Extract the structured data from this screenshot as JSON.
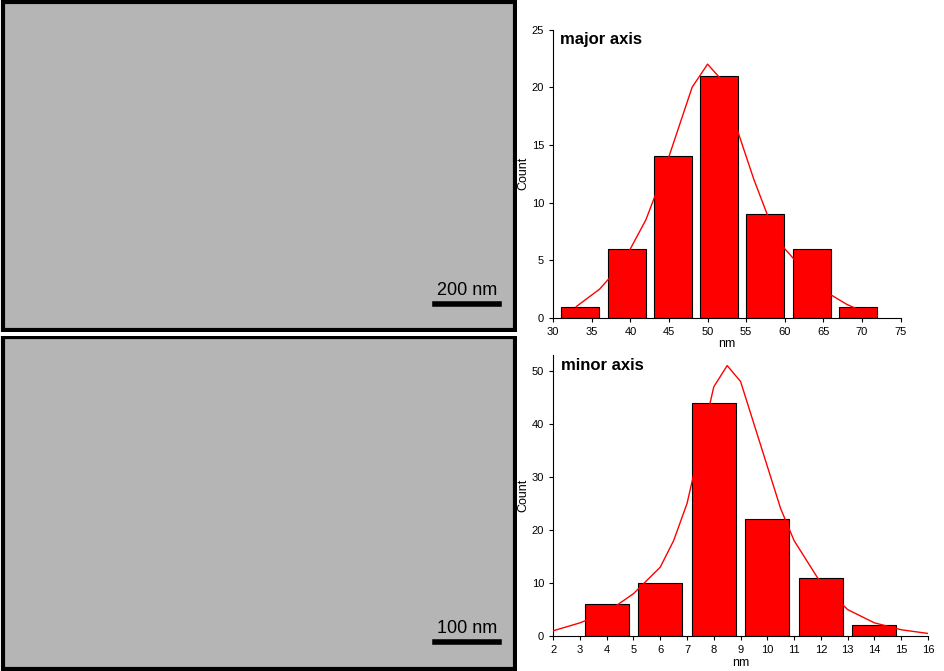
{
  "images": [
    {
      "scale_bar": "200 nm"
    },
    {
      "scale_bar": "100 nm"
    }
  ],
  "chart_data": [
    {
      "type": "histogram",
      "title": "major axis",
      "x_label": "nm",
      "y_label": "Count",
      "bins": [
        30.5,
        36.5,
        42.5,
        48.5,
        54.5,
        60.5,
        66.5,
        72.5
      ],
      "counts": [
        1,
        6,
        14,
        21,
        9,
        6,
        1
      ],
      "color": "#ff0000",
      "series": [
        {
          "type": "line",
          "color": "#ff0000",
          "x": [
            33,
            36,
            38,
            40,
            42,
            44,
            46,
            48,
            50,
            52,
            54,
            56,
            58,
            60,
            62,
            64,
            66,
            68,
            70,
            72
          ],
          "values": [
            1,
            2.5,
            4,
            6,
            8.5,
            12,
            16,
            20,
            22,
            20.5,
            16,
            12,
            8.5,
            6,
            4.5,
            3,
            2,
            1.2,
            0.6,
            0.2
          ]
        }
      ],
      "xlim": [
        30,
        75
      ],
      "xticks": [
        30,
        35,
        40,
        45,
        50,
        55,
        60,
        65,
        70,
        75
      ],
      "ylim": [
        0,
        25
      ],
      "yticks": [
        0,
        5,
        10,
        15,
        20,
        25
      ]
    },
    {
      "type": "histogram",
      "title": "minor axis",
      "x_label": "nm",
      "y_label": "Count",
      "bins": [
        3,
        5,
        7,
        9,
        11,
        13,
        15
      ],
      "counts": [
        6,
        10,
        44,
        22,
        11,
        2
      ],
      "color": "#ff0000",
      "series": [
        {
          "type": "line",
          "color": "#ff0000",
          "x": [
            2,
            3,
            4,
            5,
            6,
            6.5,
            7,
            7.5,
            8,
            8.5,
            9,
            9.5,
            10,
            10.5,
            11,
            12,
            13,
            14,
            15,
            16
          ],
          "values": [
            1,
            2.5,
            4.5,
            8,
            13,
            18,
            25,
            36,
            47,
            51,
            48,
            40,
            32,
            24,
            18,
            10,
            5,
            2.5,
            1.2,
            0.5
          ]
        }
      ],
      "xlim": [
        2,
        16
      ],
      "xticks": [
        2,
        3,
        4,
        5,
        6,
        7,
        8,
        9,
        10,
        11,
        12,
        13,
        14,
        15,
        16
      ],
      "ylim": [
        0,
        53
      ],
      "yticks": [
        0,
        10,
        20,
        30,
        40,
        50
      ]
    }
  ]
}
